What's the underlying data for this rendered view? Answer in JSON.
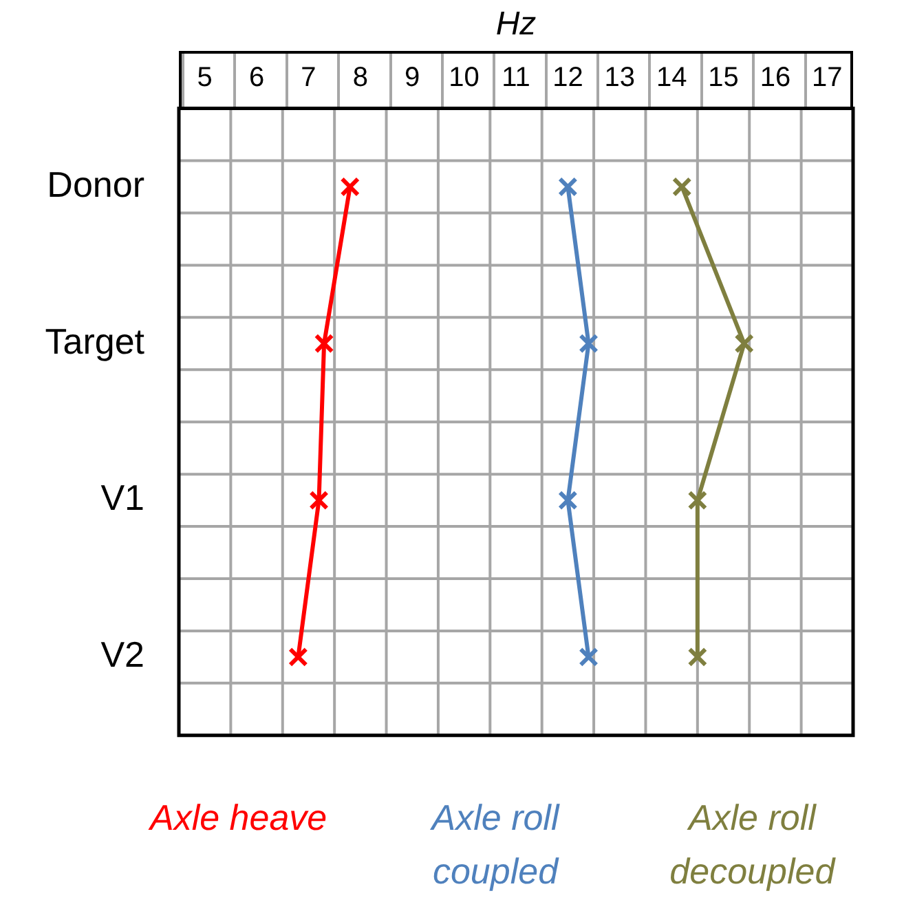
{
  "chart_data": {
    "type": "line",
    "xlabel": "Hz",
    "categories": [
      "Donor",
      "Target",
      "V1",
      "V2"
    ],
    "xlim": [
      4.5,
      17.5
    ],
    "xticks": [
      5,
      6,
      7,
      8,
      9,
      10,
      11,
      12,
      13,
      14,
      15,
      16,
      17
    ],
    "grid": true,
    "legend": "bottom",
    "orientation": "horizontal",
    "marker": "cross",
    "line_style": "solid",
    "series": [
      {
        "name": "Axle heave",
        "color": "#ff0000",
        "values": [
          7.8,
          7.3,
          7.2,
          6.8
        ]
      },
      {
        "name": "Axle roll coupled",
        "color": "#4f81bd",
        "values": [
          12.0,
          12.4,
          12.0,
          12.4
        ]
      },
      {
        "name": "Axle roll decoupled",
        "color": "#7f7f3f",
        "values": [
          14.2,
          15.4,
          14.5,
          14.5
        ]
      }
    ]
  }
}
